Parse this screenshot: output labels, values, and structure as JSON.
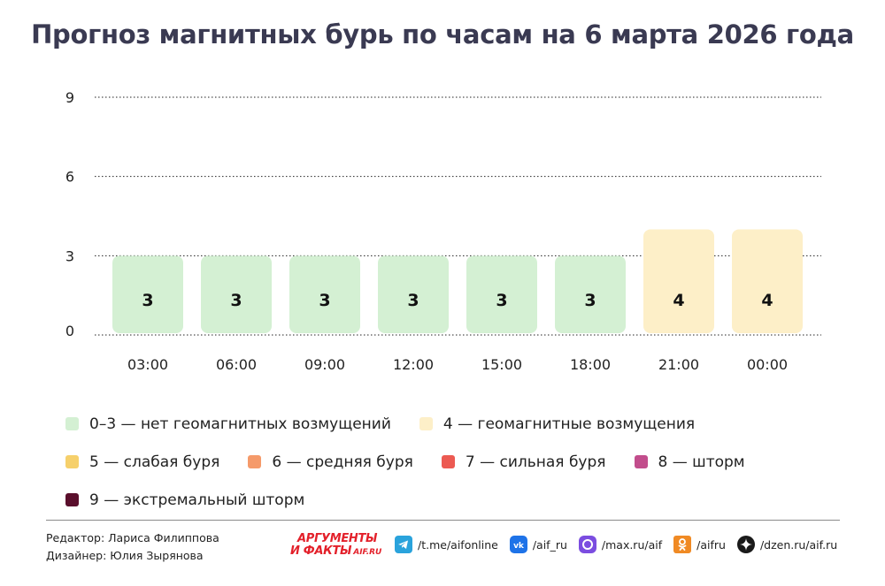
{
  "title": "Прогноз магнитных бурь по часам на 6 марта 2026 года",
  "chart_data": {
    "type": "bar",
    "title": "Прогноз магнитных бурь по часам на 6 марта 2026 года",
    "categories": [
      "03:00",
      "06:00",
      "09:00",
      "12:00",
      "15:00",
      "18:00",
      "21:00",
      "00:00"
    ],
    "values": [
      3,
      3,
      3,
      3,
      3,
      3,
      4,
      4
    ],
    "ylim": [
      0,
      9
    ],
    "yticks": [
      "0",
      "3",
      "6",
      "9"
    ],
    "grid": "horizontal dotted",
    "xlabel": "",
    "ylabel": "",
    "level_colors": {
      "0-3": "#d4f0d3",
      "4": "#fdefc8",
      "5": "#f6d06b",
      "6": "#f59a6a",
      "7": "#ec5a52",
      "8": "#c24d8c",
      "9": "#5a0f2c"
    }
  },
  "legend": [
    {
      "label": "0–3 — нет геомагнитных возмущений",
      "color": "#d4f0d3"
    },
    {
      "label": "4 — геомагнитные возмущения",
      "color": "#fdefc8"
    },
    {
      "label": "5 — слабая буря",
      "color": "#f6d06b"
    },
    {
      "label": "6 — средняя буря",
      "color": "#f59a6a"
    },
    {
      "label": "7 — сильная буря",
      "color": "#ec5a52"
    },
    {
      "label": "8 — шторм",
      "color": "#c24d8c"
    },
    {
      "label": "9 — экстремальный шторм",
      "color": "#5a0f2c"
    }
  ],
  "footer": {
    "editor": "Редактор: Лариса Филиппова",
    "designer": "Дизайнер: Юлия Зырянова",
    "logo": {
      "line1": "АРГУМЕНТЫ",
      "line2": "И ФАКТЫ",
      "line3": "AIF.RU"
    },
    "socials": [
      {
        "icon": "telegram-icon",
        "label": "/t.me/aifonline",
        "color": "#2aa3dc"
      },
      {
        "icon": "vk-icon",
        "label": "/aif_ru",
        "color": "#1e73e8"
      },
      {
        "icon": "max-icon",
        "label": "/max.ru/aif",
        "color": "#7b4de0"
      },
      {
        "icon": "odnoklassniki-icon",
        "label": "/aifru",
        "color": "#f08a24"
      },
      {
        "icon": "dzen-icon",
        "label": "/dzen.ru/aif.ru",
        "color": "#1a1a1a"
      }
    ]
  }
}
